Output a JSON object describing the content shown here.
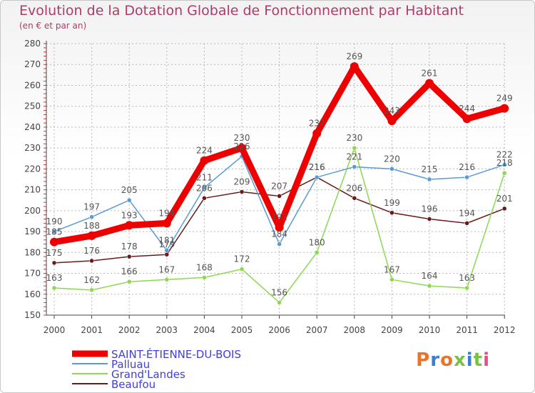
{
  "title": "Evolution de la Dotation Globale de Fonctionnement par Habitant",
  "subtitle": "(en € et par an)",
  "brand": "Proxiti",
  "colors": {
    "title": "#b03a6a",
    "axis": "#444444",
    "grid": "#b8b8b8",
    "label": "#555555",
    "legend_text": "#4040d8"
  },
  "chart_data": {
    "type": "line",
    "title": "Evolution de la Dotation Globale de Fonctionnement par Habitant",
    "subtitle": "(en € et par an)",
    "xlabel": "",
    "ylabel": "",
    "ylim": [
      150,
      280
    ],
    "yticks": [
      150,
      160,
      170,
      180,
      190,
      200,
      210,
      220,
      230,
      240,
      250,
      260,
      270,
      280
    ],
    "grid": true,
    "legend_position": "bottom-left",
    "categories": [
      "2000",
      "2001",
      "2002",
      "2003",
      "2004",
      "2005",
      "2006",
      "2007",
      "2008",
      "2009",
      "2010",
      "2011",
      "2012"
    ],
    "series": [
      {
        "name": "SAINT-ÉTIENNE-DU-BOIS",
        "color": "#ee0000",
        "values": [
          185,
          188,
          193,
          194,
          224,
          230,
          192,
          237,
          269,
          243,
          261,
          244,
          249
        ]
      },
      {
        "name": "Palluau",
        "color": "#5b9bd5",
        "values": [
          190,
          197,
          205,
          181,
          211,
          226,
          184,
          216,
          221,
          220,
          215,
          216,
          222
        ]
      },
      {
        "name": "Grand'Landes",
        "color": "#8cd850",
        "values": [
          163,
          162,
          166,
          167,
          168,
          172,
          156,
          180,
          230,
          167,
          164,
          163,
          218
        ]
      },
      {
        "name": "Beaufou",
        "color": "#6b1a1a",
        "values": [
          175,
          176,
          178,
          179,
          206,
          209,
          207,
          216,
          206,
          199,
          196,
          194,
          201
        ]
      }
    ]
  }
}
